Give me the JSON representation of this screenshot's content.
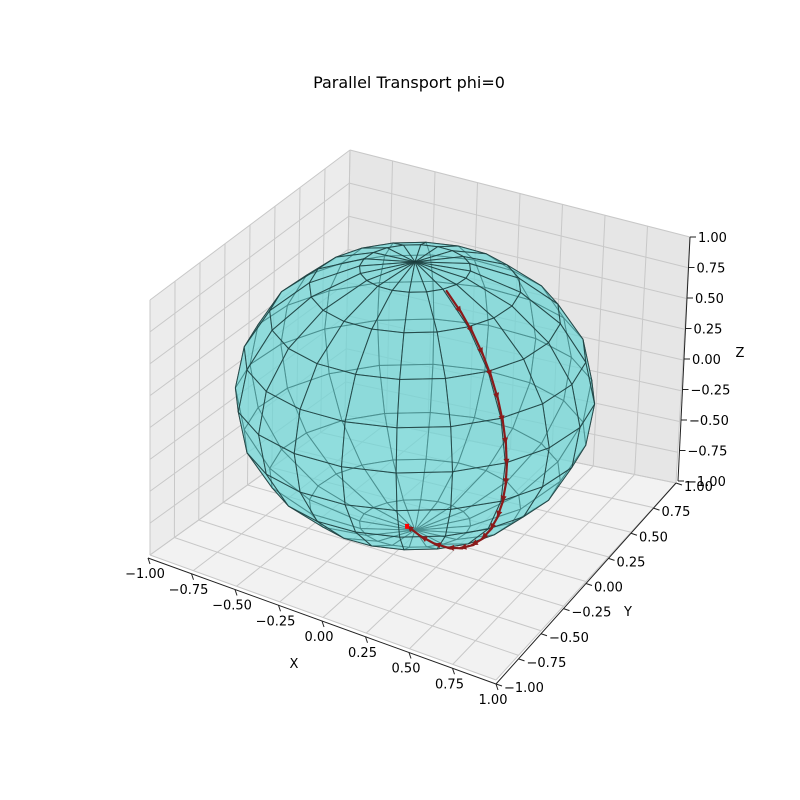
{
  "chart_data": {
    "type": "surface3d",
    "title": "Parallel Transport phi=0",
    "xlabel": "X",
    "ylabel": "Y",
    "zlabel": "Z",
    "xlim": [
      -1,
      1
    ],
    "ylim": [
      -1,
      1
    ],
    "zlim": [
      -1,
      1
    ],
    "grid": true,
    "x_ticks": [
      "−1.00",
      "−0.75",
      "−0.50",
      "−0.25",
      "0.00",
      "0.25",
      "0.50",
      "0.75",
      "1.00"
    ],
    "y_ticks": [
      "−1.00",
      "−0.75",
      "−0.50",
      "−0.25",
      "0.00",
      "0.25",
      "0.50",
      "0.75",
      "1.00"
    ],
    "z_ticks": [
      "−1.00",
      "−0.75",
      "−0.50",
      "−0.25",
      "0.00",
      "0.25",
      "0.50",
      "0.75",
      "1.00"
    ],
    "surface": {
      "shape": "unit sphere",
      "meridians": 20,
      "parallels": 10,
      "face_color": "#6fd6d6",
      "edge_color": "#1a3a3a",
      "alpha": 0.5
    },
    "vectors": {
      "color": "#8b1a1a",
      "tip_color": "#ff0000",
      "phi": 0,
      "theta": [
        0.35,
        0.5,
        0.65,
        0.8,
        0.95,
        1.1,
        1.25,
        1.4,
        1.55,
        1.7,
        1.85,
        2.0,
        2.15,
        2.3,
        2.45,
        2.6,
        2.75,
        2.9,
        3.05
      ]
    }
  }
}
